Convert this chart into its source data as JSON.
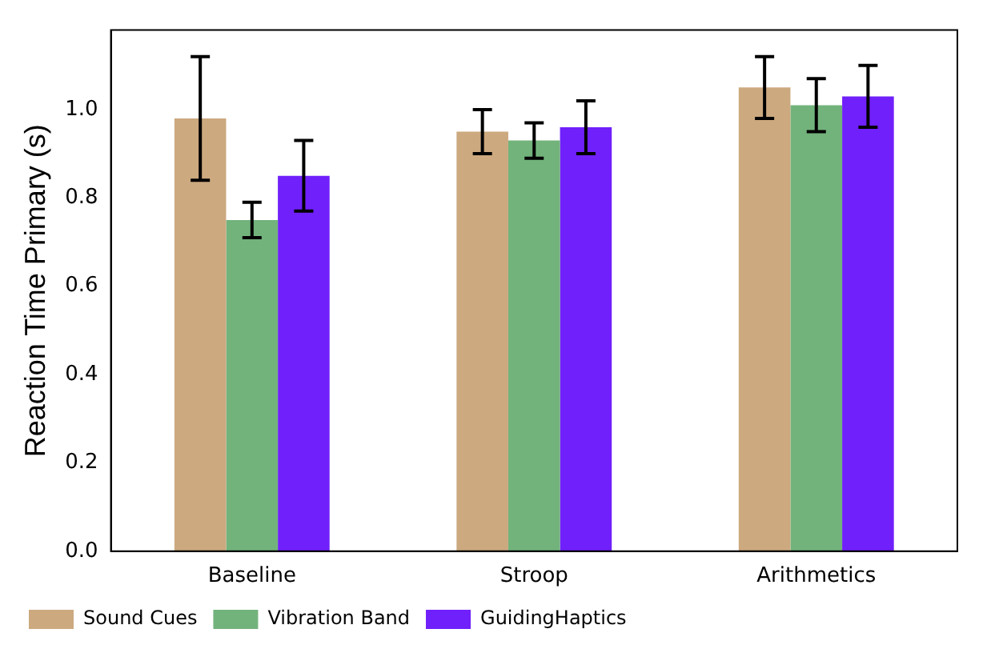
{
  "chart_data": {
    "type": "bar",
    "ylabel": "Reaction Time Primary (s)",
    "categories": [
      "Baseline",
      "Stroop",
      "Arithmetics"
    ],
    "series": [
      {
        "name": "Sound Cues",
        "color": "#cca97f",
        "values": [
          0.98,
          0.95,
          1.05
        ],
        "errors": [
          [
            0.84,
            1.12
          ],
          [
            0.9,
            1.0
          ],
          [
            0.98,
            1.12
          ]
        ]
      },
      {
        "name": "Vibration Band",
        "color": "#72b37c",
        "values": [
          0.75,
          0.93,
          1.01
        ],
        "errors": [
          [
            0.71,
            0.79
          ],
          [
            0.89,
            0.97
          ],
          [
            0.95,
            1.07
          ]
        ]
      },
      {
        "name": "GuidingHaptics",
        "color": "#7020fa",
        "values": [
          0.85,
          0.96,
          1.03
        ],
        "errors": [
          [
            0.77,
            0.93
          ],
          [
            0.9,
            1.02
          ],
          [
            0.96,
            1.1
          ]
        ]
      }
    ],
    "ylim": [
      0,
      1.18
    ],
    "yticks": [
      {
        "value": 0,
        "label": "0.0"
      },
      {
        "value": 0.2,
        "label": "0.2"
      },
      {
        "value": 0.4,
        "label": "0.4"
      },
      {
        "value": 0.6,
        "label": "0.6"
      },
      {
        "value": 0.8,
        "label": "0.8"
      },
      {
        "value": 1,
        "label": "1.0"
      }
    ],
    "grid": false,
    "legend": "bottom left"
  }
}
